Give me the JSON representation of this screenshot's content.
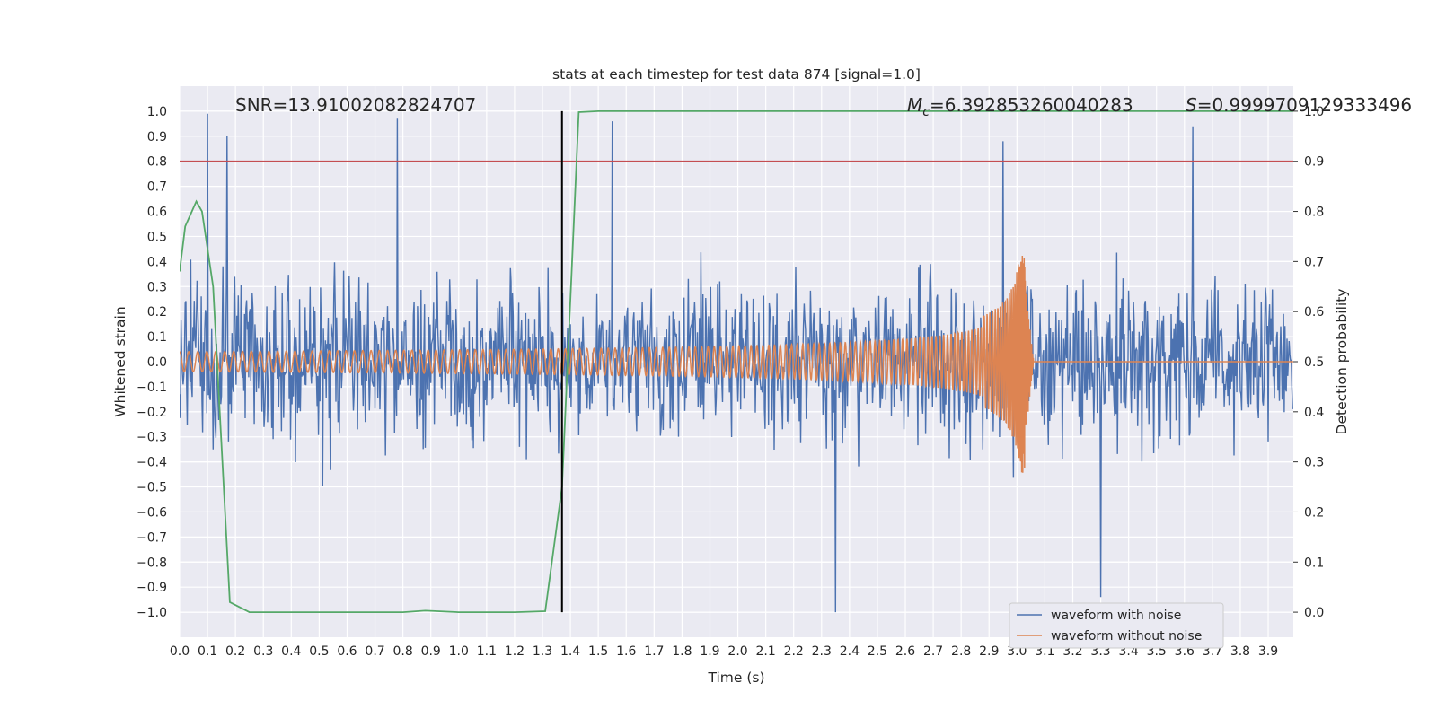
{
  "chart_data": {
    "type": "line",
    "title": "stats at each timestep for test data 874 [signal=1.0]",
    "xlabel": "Time (s)",
    "ylabel": "Whitened strain",
    "y2label": "Detection probability",
    "xlim": [
      0.0,
      3.99
    ],
    "ylim": [
      -1.1,
      1.1
    ],
    "y2lim": [
      -0.05,
      1.05
    ],
    "x_ticks": [
      "0.0",
      "0.1",
      "0.2",
      "0.3",
      "0.4",
      "0.5",
      "0.6",
      "0.7",
      "0.8",
      "0.9",
      "1.0",
      "1.1",
      "1.2",
      "1.3",
      "1.4",
      "1.5",
      "1.6",
      "1.7",
      "1.8",
      "1.9",
      "2.0",
      "2.1",
      "2.2",
      "2.3",
      "2.4",
      "2.5",
      "2.6",
      "2.7",
      "2.8",
      "2.9",
      "3.0",
      "3.1",
      "3.2",
      "3.3",
      "3.4",
      "3.5",
      "3.6",
      "3.7",
      "3.8",
      "3.9"
    ],
    "y_ticks": [
      "1.0",
      "0.9",
      "0.8",
      "0.7",
      "0.6",
      "0.5",
      "0.4",
      "0.3",
      "0.2",
      "0.1",
      "0.0",
      "−0.1",
      "−0.2",
      "−0.3",
      "−0.4",
      "−0.5",
      "−0.6",
      "−0.7",
      "−0.8",
      "−0.9",
      "−1.0"
    ],
    "y2_ticks": [
      "1.0",
      "0.9",
      "0.8",
      "0.7",
      "0.6",
      "0.5",
      "0.4",
      "0.3",
      "0.2",
      "0.1",
      "0.0"
    ],
    "threshold": {
      "y2": 0.9,
      "color": "#c44e52"
    },
    "marker_line": {
      "x": 1.37,
      "y2_from": 0.0,
      "y2_to": 1.0,
      "color": "#000000"
    },
    "series": [
      {
        "name": "waveform with noise",
        "axis": "left",
        "color": "#4c72b0",
        "kind": "noise",
        "description_range": [
          -1.0,
          1.0
        ],
        "spikes": [
          [
            0.1,
            0.99
          ],
          [
            0.17,
            0.9
          ],
          [
            0.78,
            0.97
          ],
          [
            2.35,
            -1.0
          ],
          [
            3.3,
            -0.94
          ],
          [
            3.63,
            0.94
          ],
          [
            1.55,
            0.96
          ],
          [
            2.95,
            0.88
          ]
        ]
      },
      {
        "name": "waveform without noise",
        "axis": "left",
        "color": "#dd8452",
        "kind": "chirp",
        "merger_time": 3.03,
        "amplitude_start": 0.04,
        "amplitude_peak": 0.45
      },
      {
        "name": "detection probability",
        "axis": "right",
        "color": "#55a868",
        "x": [
          0.0,
          0.02,
          0.06,
          0.08,
          0.12,
          0.18,
          0.25,
          0.5,
          0.8,
          0.88,
          1.0,
          1.2,
          1.31,
          1.37,
          1.43,
          1.5,
          3.99
        ],
        "values": [
          0.68,
          0.77,
          0.82,
          0.8,
          0.65,
          0.02,
          0.0,
          0.0,
          0.0,
          0.003,
          0.0,
          0.0,
          0.002,
          0.25,
          0.998,
          1.0,
          1.0
        ]
      }
    ],
    "annotations": {
      "snr": "SNR=13.91002082824707",
      "mc_symbol": "M",
      "mc_sub": "c",
      "mc_value": "=6.392853260040283",
      "s_symbol": "S",
      "s_value": "=0.9999709129333496"
    },
    "legend": {
      "placement": "lower-right",
      "entries": [
        {
          "label": "waveform with noise",
          "color": "#4c72b0"
        },
        {
          "label": "waveform without noise",
          "color": "#dd8452"
        }
      ]
    },
    "style": {
      "plot_bg": "#eaeaf2",
      "grid": "#ffffff"
    }
  }
}
